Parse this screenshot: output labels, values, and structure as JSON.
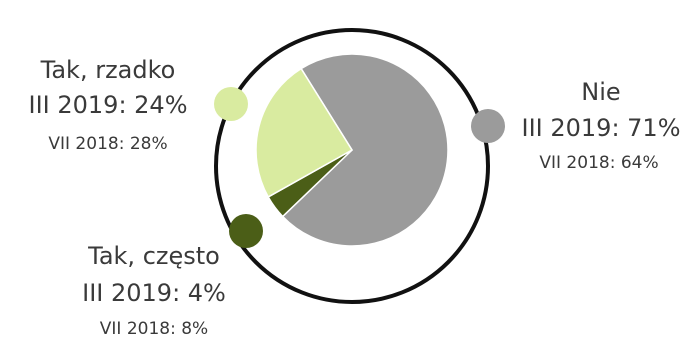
{
  "chart_data": {
    "type": "pie",
    "slices": [
      {
        "category": "Nie",
        "primary_label": "III 2019: 71%",
        "secondary_label": "VII 2018: 64%",
        "value": 71,
        "previous_value": 64,
        "color": "#9b9b9b"
      },
      {
        "category": "Tak, często",
        "primary_label": "III 2019: 4%",
        "secondary_label": "VII 2018: 8%",
        "value": 4,
        "previous_value": 8,
        "color": "#4b5e17"
      },
      {
        "category": "Tak, rzadko",
        "primary_label": "III 2019: 24%",
        "secondary_label": "VII 2018: 28%",
        "value": 24,
        "previous_value": 28,
        "color": "#d9eba0"
      }
    ],
    "ring_color": "#111111"
  }
}
